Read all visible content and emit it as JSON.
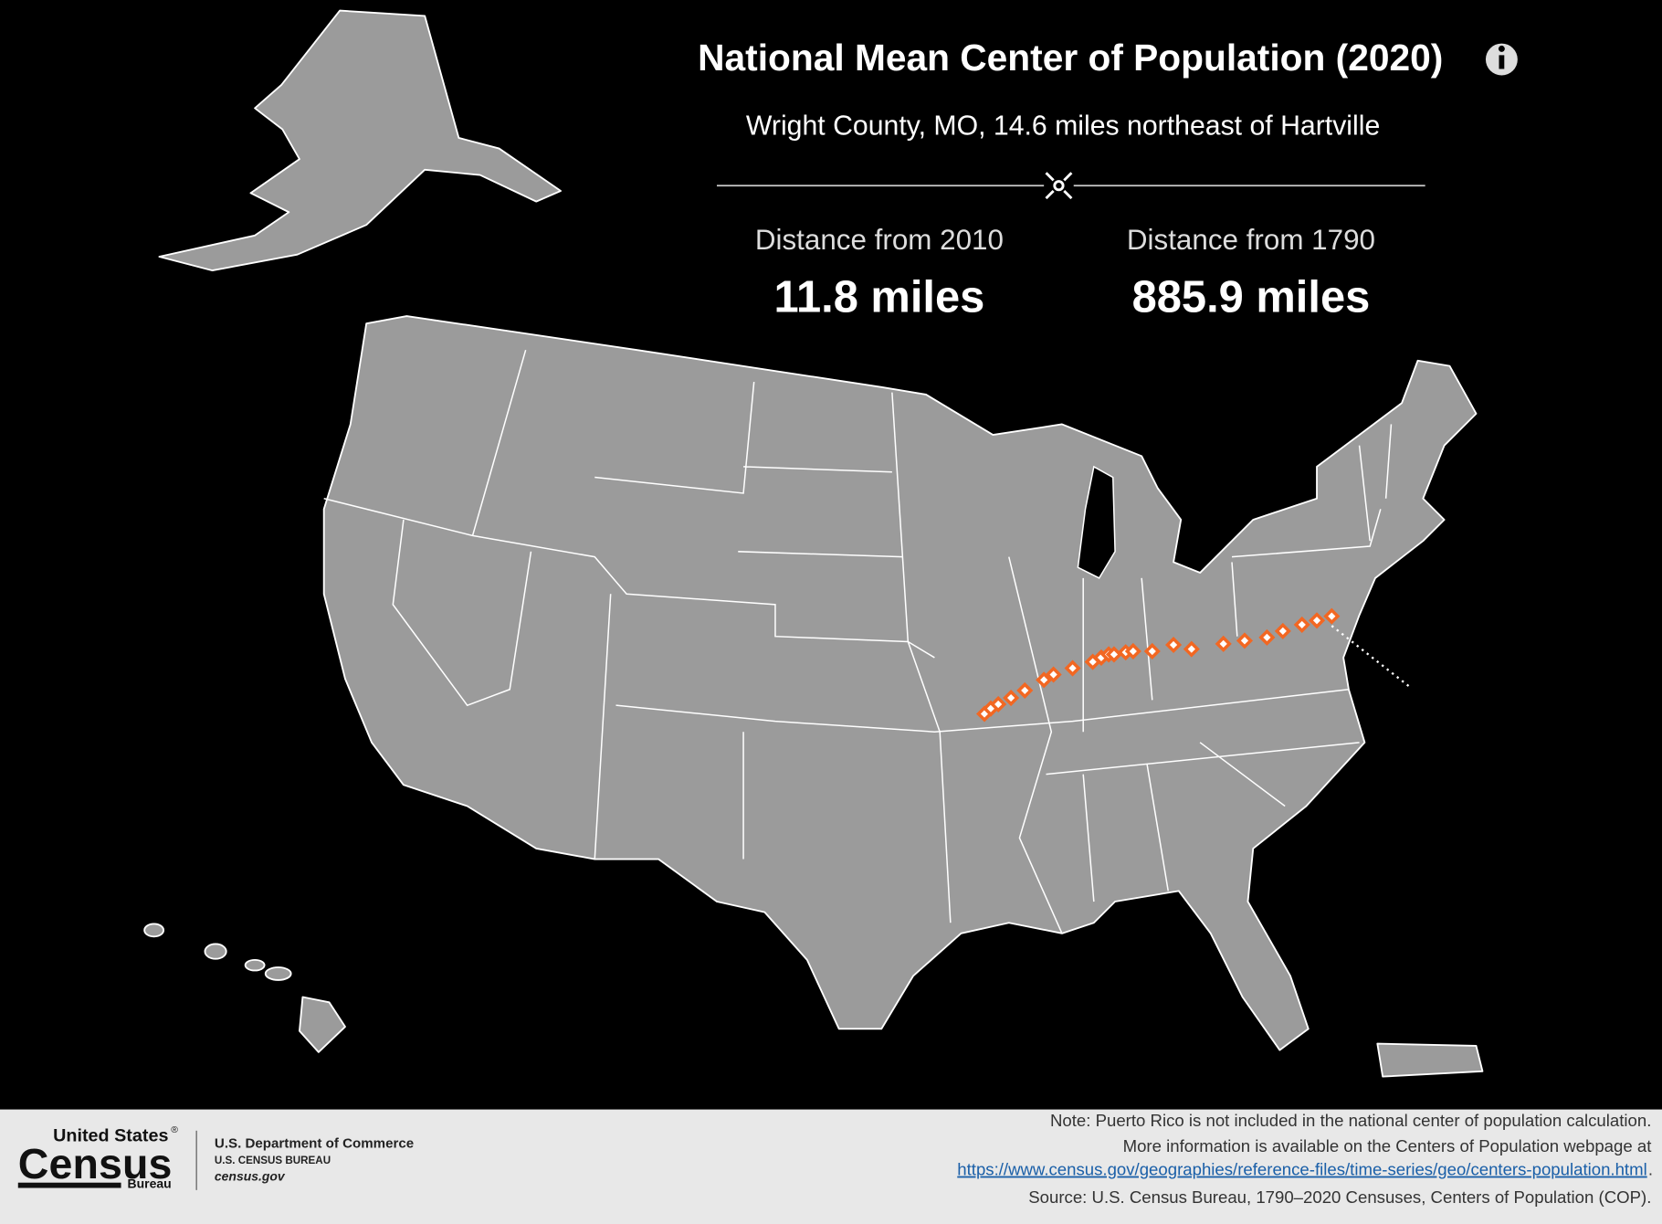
{
  "header": {
    "title": "National Mean Center of Population (2020)",
    "subtitle": "Wright County, MO, 14.6 miles northeast of Hartville"
  },
  "stats": [
    {
      "label": "Distance from 2010",
      "value": "11.8 miles"
    },
    {
      "label": "Distance from 1790",
      "value": "885.9 miles"
    }
  ],
  "footer": {
    "logo": {
      "line1": "United States",
      "registered": "®",
      "line2": "Census",
      "line3": "Bureau"
    },
    "department": "U.S. Department of Commerce",
    "bureau": "U.S. CENSUS BUREAU",
    "website": "census.gov",
    "note": "Note: Puerto Rico is not included in the national center of population calculation.",
    "more_info": "More information is available on the Centers of Population webpage at",
    "link": "https://www.census.gov/geographies/reference-files/time-series/geo/centers-population.html",
    "link_end": ".",
    "source": "Source: U.S. Census Bureau, 1790–2020 Censuses, Centers of Population (COP)."
  }
}
